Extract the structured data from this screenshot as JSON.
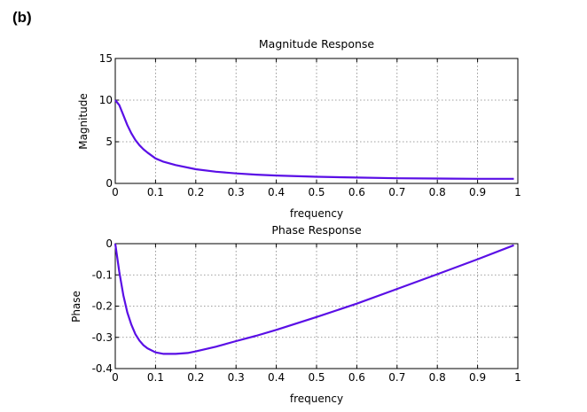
{
  "panel_label": "(b)",
  "chart_data": [
    {
      "type": "line",
      "title": "Magnitude Response",
      "xlabel": "frequency",
      "ylabel": "Magnitude",
      "xlim": [
        0,
        1
      ],
      "ylim": [
        0,
        15
      ],
      "xticks": [
        "0",
        "0.1",
        "0.2",
        "0.3",
        "0.4",
        "0.5",
        "0.6",
        "0.7",
        "0.8",
        "0.9",
        "1"
      ],
      "yticks": [
        "0",
        "5",
        "10",
        "15"
      ],
      "grid": true,
      "color": "#5a0fe6",
      "x": [
        0,
        0.01,
        0.02,
        0.03,
        0.04,
        0.05,
        0.06,
        0.07,
        0.08,
        0.1,
        0.12,
        0.15,
        0.2,
        0.25,
        0.3,
        0.35,
        0.4,
        0.5,
        0.6,
        0.7,
        0.8,
        0.9,
        0.99
      ],
      "y": [
        10,
        9.4,
        8.2,
        7.0,
        6.0,
        5.2,
        4.6,
        4.1,
        3.7,
        3.0,
        2.6,
        2.2,
        1.7,
        1.4,
        1.2,
        1.05,
        0.95,
        0.8,
        0.7,
        0.62,
        0.58,
        0.55,
        0.55
      ]
    },
    {
      "type": "line",
      "title": "Phase Response",
      "xlabel": "frequency",
      "ylabel": "Phase",
      "xlim": [
        0,
        1
      ],
      "ylim": [
        -0.4,
        0
      ],
      "xticks": [
        "0",
        "0.1",
        "0.2",
        "0.3",
        "0.4",
        "0.5",
        "0.6",
        "0.7",
        "0.8",
        "0.9",
        "1"
      ],
      "yticks": [
        "0",
        "-0.1",
        "-0.2",
        "-0.3",
        "-0.4"
      ],
      "grid": true,
      "color": "#5a0fe6",
      "x": [
        0,
        0.01,
        0.02,
        0.03,
        0.04,
        0.05,
        0.06,
        0.07,
        0.08,
        0.1,
        0.12,
        0.15,
        0.18,
        0.2,
        0.25,
        0.3,
        0.35,
        0.4,
        0.5,
        0.6,
        0.7,
        0.8,
        0.9,
        0.99
      ],
      "y": [
        0,
        -0.09,
        -0.165,
        -0.22,
        -0.26,
        -0.29,
        -0.31,
        -0.325,
        -0.335,
        -0.348,
        -0.353,
        -0.353,
        -0.35,
        -0.345,
        -0.33,
        -0.312,
        -0.295,
        -0.276,
        -0.235,
        -0.192,
        -0.145,
        -0.098,
        -0.05,
        -0.005
      ]
    }
  ]
}
